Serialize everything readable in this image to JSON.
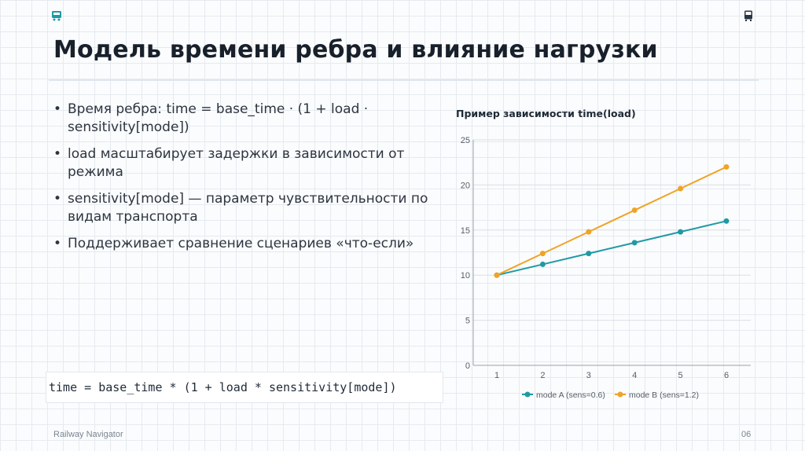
{
  "header": {
    "title": "Модель времени ребра и влияние нагрузки",
    "icon_left": "train-icon",
    "icon_right": "bus-icon"
  },
  "bullets": [
    "Время ребра: time = base_time · (1 + load · sensitivity[mode])",
    "load масштабирует задержки в зависимости от режима",
    "sensitivity[mode] — параметр чувствительности по видам транспорта",
    "Поддерживает сравнение сценариев «что-если»"
  ],
  "code": "time = base_time * (1 + load * sensitivity[mode])",
  "footer": {
    "left": "Railway Navigator",
    "right": "06"
  },
  "colors": {
    "accent": "#1f9aa5",
    "series_a": "#1f9aa5",
    "series_b": "#f0a326",
    "text": "#18202b"
  },
  "chart_data": {
    "type": "line",
    "title": "Пример зависимости time(load)",
    "xlabel": "",
    "ylabel": "",
    "x": [
      1,
      2,
      3,
      4,
      5,
      6
    ],
    "xlim": [
      1,
      6
    ],
    "ylim": [
      0,
      25
    ],
    "yticks": [
      0,
      5,
      10,
      15,
      20,
      25
    ],
    "grid": true,
    "legend_position": "bottom",
    "series": [
      {
        "name": "mode A (sens=0.6)",
        "color": "#1f9aa5",
        "values": [
          10,
          11.2,
          12.4,
          13.6,
          14.8,
          16
        ]
      },
      {
        "name": "mode B (sens=1.2)",
        "color": "#f0a326",
        "values": [
          10,
          12.4,
          14.8,
          17.2,
          19.6,
          22
        ]
      }
    ]
  }
}
